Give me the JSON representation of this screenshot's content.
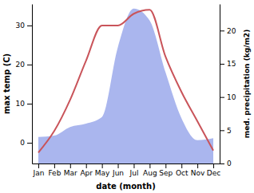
{
  "chart_data": {
    "type": "line",
    "x_label": "date (month)",
    "y_label": "max temp (C)",
    "y2_label": "med. precipitation (kg/m2)",
    "categories": [
      "Jan",
      "Feb",
      "Mar",
      "Apr",
      "May",
      "Jun",
      "Jul",
      "Aug",
      "Sep",
      "Oct",
      "Nov",
      "Dec"
    ],
    "ylim": [
      -5.3,
      35.5
    ],
    "yticks": [
      0,
      10,
      20,
      30
    ],
    "y2lim": [
      0,
      24
    ],
    "y2ticks": [
      0,
      5,
      10,
      15,
      20
    ],
    "series": [
      {
        "type": "area",
        "axis": "y2",
        "color": "#aab6ee",
        "values": [
          4,
          4.2,
          5.5,
          6,
          7,
          17.5,
          23.3,
          21.5,
          13.7,
          6.8,
          3.5,
          3.8
        ]
      },
      {
        "type": "line",
        "color": "#c9545a",
        "values": [
          -2.5,
          3,
          11,
          21,
          30,
          30,
          33,
          34,
          22,
          13,
          5.5,
          -2
        ]
      }
    ]
  }
}
